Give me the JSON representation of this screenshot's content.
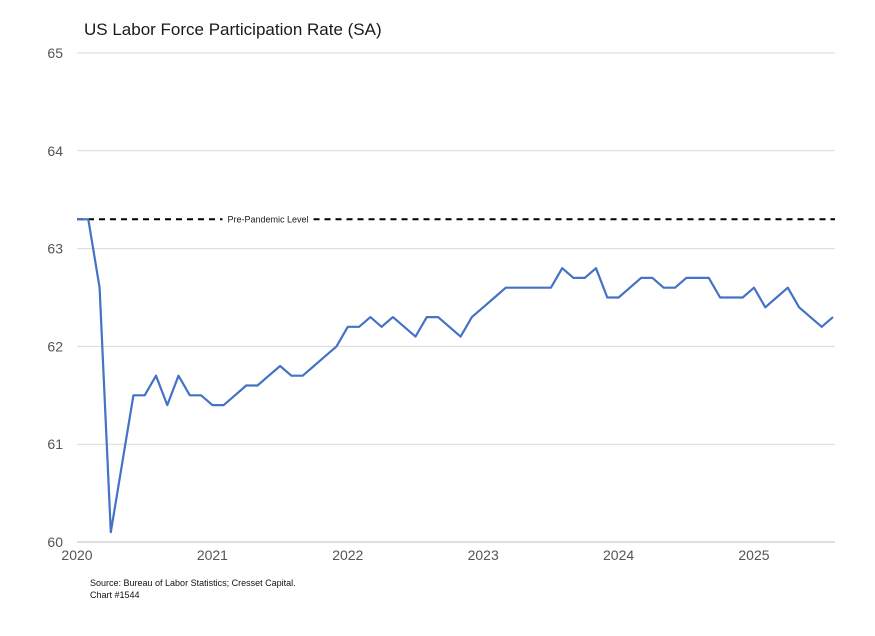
{
  "chart_data": {
    "type": "line",
    "title": "US Labor Force Participation Rate (SA)",
    "xlabel": "",
    "ylabel": "",
    "ylim": [
      60,
      65
    ],
    "yticks": [
      60,
      61,
      62,
      63,
      64,
      65
    ],
    "xlim": [
      "2020-01",
      "2025-08"
    ],
    "xticks": [
      "2020",
      "2021",
      "2022",
      "2023",
      "2024",
      "2025"
    ],
    "grid": "horizontal",
    "legend": "none",
    "colors": {
      "series": "#4472c4",
      "reference": "#000000",
      "grid": "#d9d9d9"
    },
    "reference_line": {
      "label": "Pre-Pandemic Level",
      "value": 63.3,
      "style": "dashed"
    },
    "series": [
      {
        "x": [
          "2020-01",
          "2020-02",
          "2020-03",
          "2020-04",
          "2020-05",
          "2020-06",
          "2020-07",
          "2020-08",
          "2020-09",
          "2020-10",
          "2020-11",
          "2020-12",
          "2021-01",
          "2021-02",
          "2021-03",
          "2021-04",
          "2021-05",
          "2021-06",
          "2021-07",
          "2021-08",
          "2021-09",
          "2021-10",
          "2021-11",
          "2021-12",
          "2022-01",
          "2022-02",
          "2022-03",
          "2022-04",
          "2022-05",
          "2022-06",
          "2022-07",
          "2022-08",
          "2022-09",
          "2022-10",
          "2022-11",
          "2022-12",
          "2023-01",
          "2023-02",
          "2023-03",
          "2023-04",
          "2023-05",
          "2023-06",
          "2023-07",
          "2023-08",
          "2023-09",
          "2023-10",
          "2023-11",
          "2023-12",
          "2024-01",
          "2024-02",
          "2024-03",
          "2024-04",
          "2024-05",
          "2024-06",
          "2024-07",
          "2024-08",
          "2024-09",
          "2024-10",
          "2024-11",
          "2024-12",
          "2025-01",
          "2025-02",
          "2025-03",
          "2025-04",
          "2025-05",
          "2025-06",
          "2025-07",
          "2025-08"
        ],
        "values": [
          63.3,
          63.3,
          62.6,
          60.1,
          60.8,
          61.5,
          61.5,
          61.7,
          61.4,
          61.7,
          61.5,
          61.5,
          61.4,
          61.4,
          61.5,
          61.6,
          61.6,
          61.7,
          61.8,
          61.7,
          61.7,
          61.8,
          61.9,
          62.0,
          62.2,
          62.2,
          62.3,
          62.2,
          62.3,
          62.2,
          62.1,
          62.3,
          62.3,
          62.2,
          62.1,
          62.3,
          62.4,
          62.5,
          62.6,
          62.6,
          62.6,
          62.6,
          62.6,
          62.8,
          62.7,
          62.7,
          62.8,
          62.5,
          62.5,
          62.6,
          62.7,
          62.7,
          62.6,
          62.6,
          62.7,
          62.7,
          62.7,
          62.5,
          62.5,
          62.5,
          62.6,
          62.4,
          62.5,
          62.6,
          62.4,
          62.3,
          62.2,
          62.3
        ]
      }
    ]
  },
  "footnote": {
    "source": "Source: Bureau of Labor Statistics; Cresset Capital.",
    "chart_id": "Chart #1544"
  }
}
